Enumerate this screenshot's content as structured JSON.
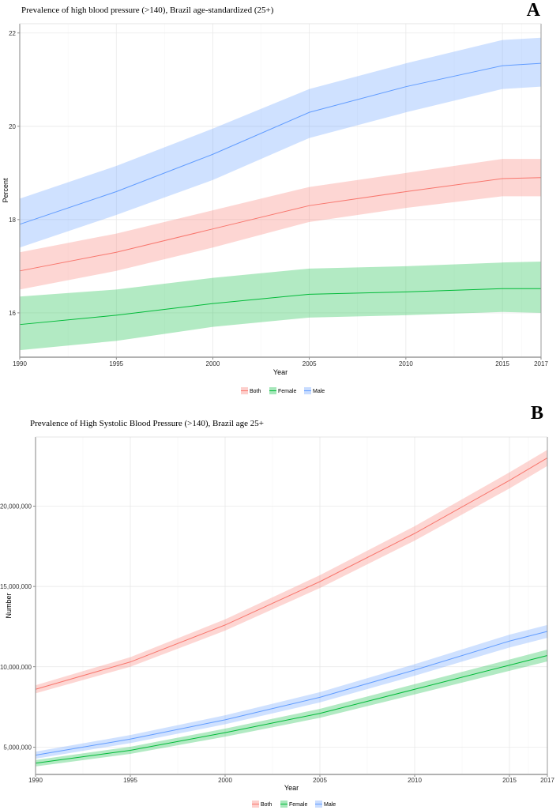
{
  "chart_data": [
    {
      "type": "area",
      "panel_label": "A",
      "title": "Prevalence of high blood pressure (>140), Brazil age-standardized (25+)",
      "xlabel": "Year",
      "ylabel": "Percent",
      "x": [
        1990,
        1995,
        2000,
        2005,
        2010,
        2015,
        2017
      ],
      "xticks": [
        "1990",
        "1995",
        "2000",
        "2005",
        "2010",
        "2015",
        "2017"
      ],
      "xtick_values": [
        1990,
        1995,
        2000,
        2005,
        2010,
        2015,
        2017
      ],
      "yticks": [
        "16",
        "18",
        "20",
        "22"
      ],
      "ytick_values": [
        16,
        18,
        20,
        22
      ],
      "xlim": [
        1990,
        2017
      ],
      "ylim": [
        15.05,
        22.2
      ],
      "grid": true,
      "legend_position": "bottom",
      "series": [
        {
          "name": "Both",
          "color": "#F8766D",
          "values": [
            16.9,
            17.3,
            17.8,
            18.3,
            18.6,
            18.88,
            18.9
          ],
          "lower": [
            16.5,
            16.9,
            17.4,
            17.95,
            18.25,
            18.5,
            18.5
          ],
          "upper": [
            17.3,
            17.7,
            18.2,
            18.7,
            19.0,
            19.3,
            19.3
          ]
        },
        {
          "name": "Female",
          "color": "#00BA38",
          "values": [
            15.75,
            15.95,
            16.2,
            16.4,
            16.45,
            16.52,
            16.52
          ],
          "lower": [
            15.2,
            15.4,
            15.7,
            15.9,
            15.95,
            16.02,
            16.0
          ],
          "upper": [
            16.35,
            16.5,
            16.75,
            16.95,
            17.0,
            17.08,
            17.1
          ]
        },
        {
          "name": "Male",
          "color": "#619CFF",
          "values": [
            17.9,
            18.6,
            19.4,
            20.3,
            20.85,
            21.3,
            21.35
          ],
          "lower": [
            17.4,
            18.1,
            18.85,
            19.75,
            20.3,
            20.8,
            20.85
          ],
          "upper": [
            18.45,
            19.15,
            19.95,
            20.8,
            21.35,
            21.85,
            21.9
          ]
        }
      ]
    },
    {
      "type": "area",
      "panel_label": "B",
      "title": "Prevalence of High Systolic Blood Pressure (>140), Brazil age 25+",
      "xlabel": "Year",
      "ylabel": "Number",
      "x": [
        1990,
        1995,
        2000,
        2005,
        2010,
        2015,
        2017
      ],
      "xticks": [
        "1990",
        "1995",
        "2000",
        "2005",
        "2010",
        "2015",
        "2017"
      ],
      "xtick_values": [
        1990,
        1995,
        2000,
        2005,
        2010,
        2015,
        2017
      ],
      "yticks": [
        "5,000,000",
        "10,000,000",
        "15,000,000",
        "20,000,000"
      ],
      "ytick_values": [
        5000000,
        10000000,
        15000000,
        20000000
      ],
      "xlim": [
        1990,
        2017
      ],
      "ylim": [
        3300000,
        24300000
      ],
      "grid": true,
      "legend_position": "bottom",
      "series": [
        {
          "name": "Both",
          "color": "#F8766D",
          "values": [
            8600000,
            10300000,
            12600000,
            15300000,
            18300000,
            21600000,
            23000000
          ],
          "lower": [
            8350000,
            10000000,
            12250000,
            14900000,
            17850000,
            21100000,
            22500000
          ],
          "upper": [
            8850000,
            10600000,
            12950000,
            15700000,
            18750000,
            22100000,
            23500000
          ]
        },
        {
          "name": "Female",
          "color": "#00BA38",
          "values": [
            4000000,
            4800000,
            5900000,
            7100000,
            8600000,
            10100000,
            10700000
          ],
          "lower": [
            3800000,
            4580000,
            5650000,
            6820000,
            8280000,
            9750000,
            10330000
          ],
          "upper": [
            4200000,
            5020000,
            6150000,
            7380000,
            8920000,
            10450000,
            11070000
          ]
        },
        {
          "name": "Male",
          "color": "#619CFF",
          "values": [
            4500000,
            5500000,
            6700000,
            8100000,
            9800000,
            11600000,
            12200000
          ],
          "lower": [
            4280000,
            5250000,
            6420000,
            7780000,
            9440000,
            11200000,
            11800000
          ],
          "upper": [
            4720000,
            5750000,
            6980000,
            8420000,
            10160000,
            12000000,
            12600000
          ]
        }
      ]
    }
  ]
}
